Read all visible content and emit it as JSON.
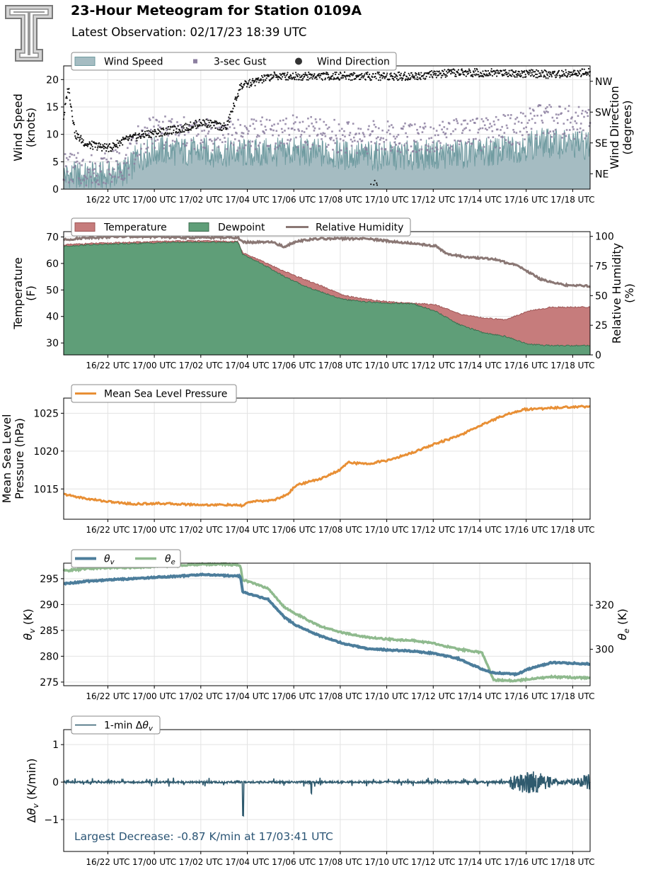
{
  "header": {
    "title": "23-Hour Meteogram for Station 0109A",
    "subtitle": "Latest Observation: 02/17/23 18:39 UTC",
    "logo": "texas-tech-double-t-logo"
  },
  "colors": {
    "wind_fill": "#a5bcc2",
    "wind_line": "#6f9ba0",
    "gust": "#8c7fa0",
    "direction": "#111111",
    "temperature": "#c67c7c",
    "dewpoint": "#5f9e78",
    "rh": "#8a7774",
    "mslp": "#e88f35",
    "theta_v": "#4c7d9b",
    "theta_e": "#8fba8e",
    "dtheta": "#2f5a6e",
    "annotation": "#2b5575",
    "grid": "#e3e3e3"
  },
  "chart_data": [
    {
      "id": "wind",
      "type": "area",
      "ylabel": "Wind Speed\n(knots)",
      "ylabel_right": "Wind Direction\n(degrees)",
      "ylim": [
        0,
        22.5
      ],
      "yticks": [
        "0",
        "5",
        "10",
        "15",
        "20"
      ],
      "ytick_values": [
        0,
        5,
        10,
        15,
        20
      ],
      "ylim_right": [
        0,
        360
      ],
      "yticks_right": [
        "NE",
        "SE",
        "SW",
        "NW"
      ],
      "ytick_right_values": [
        45,
        135,
        225,
        315
      ],
      "xticks": [
        "16/22 UTC",
        "17/00 UTC",
        "17/02 UTC",
        "17/04 UTC",
        "17/06 UTC",
        "17/08 UTC",
        "17/10 UTC",
        "17/12 UTC",
        "17/14 UTC",
        "17/16 UTC",
        "17/18 UTC"
      ],
      "xtick_hours": [
        1.9,
        3.9,
        5.9,
        7.9,
        9.9,
        11.9,
        13.9,
        15.9,
        17.9,
        19.9,
        21.9
      ],
      "xlim_hours": [
        0,
        22.65
      ],
      "legend": [
        "Wind Speed",
        "3-sec Gust",
        "Wind Direction"
      ],
      "series": [
        {
          "name": "Wind Speed",
          "x": [
            0,
            1,
            2,
            2.8,
            3.2,
            4,
            6,
            8,
            10,
            12,
            14,
            16,
            18,
            19.5,
            20.5,
            22.65
          ],
          "values": [
            2.5,
            2.2,
            2.4,
            3.5,
            6,
            7,
            6.8,
            6.5,
            6.8,
            6.2,
            6,
            6.3,
            6.5,
            7.5,
            8.5,
            8
          ]
        },
        {
          "name": "3-sec Gust",
          "x": [
            0,
            1,
            2,
            2.8,
            3.2,
            4,
            6,
            8,
            10,
            12,
            14,
            16,
            18,
            19.5,
            20.5,
            22.65
          ],
          "values": [
            4,
            3.5,
            4,
            5,
            9,
            10.5,
            10,
            10,
            10.5,
            9.5,
            9.5,
            9.8,
            10,
            11,
            12.5,
            12
          ]
        },
        {
          "name": "Wind Direction",
          "x": [
            0,
            0.2,
            0.5,
            1,
            2,
            2.5,
            3.5,
            5,
            6,
            7,
            7.6,
            9,
            11,
            13,
            15,
            17,
            19,
            21,
            22.65
          ],
          "values": [
            210,
            300,
            160,
            130,
            120,
            140,
            160,
            175,
            195,
            180,
            300,
            330,
            330,
            330,
            330,
            340,
            340,
            335,
            340
          ]
        }
      ]
    },
    {
      "id": "temp",
      "type": "area",
      "ylabel": "Temperature\n(F)",
      "ylabel_right": "Relative Humidity\n(%)",
      "ylim": [
        25.5,
        72
      ],
      "yticks": [
        "30",
        "40",
        "50",
        "60",
        "70"
      ],
      "ytick_values": [
        30,
        40,
        50,
        60,
        70
      ],
      "ylim_right": [
        0,
        104
      ],
      "yticks_right": [
        "0",
        "25",
        "50",
        "75",
        "100"
      ],
      "ytick_right_values": [
        0,
        25,
        50,
        75,
        100
      ],
      "legend": [
        "Temperature",
        "Dewpoint",
        "Relative Humidity"
      ],
      "series": [
        {
          "name": "Temperature",
          "x": [
            0,
            1,
            3,
            5,
            6,
            7.5,
            7.7,
            8.5,
            9.5,
            10.5,
            11.5,
            12,
            13,
            14,
            15,
            16,
            17,
            18,
            19,
            20,
            21,
            22.65
          ],
          "values": [
            67,
            67.5,
            68,
            68.5,
            68.5,
            68.3,
            64,
            61,
            57,
            53.5,
            50,
            48,
            46.5,
            45.5,
            45,
            44.5,
            41,
            39.5,
            38.8,
            42,
            43.5,
            43.5
          ]
        },
        {
          "name": "Dewpoint",
          "x": [
            0,
            1,
            3,
            5,
            6,
            7.5,
            7.7,
            8.5,
            9.5,
            10.5,
            11.5,
            12,
            13,
            14,
            15,
            16,
            17,
            18,
            19,
            20,
            21,
            22.65
          ],
          "values": [
            66.5,
            67,
            67.5,
            68,
            68,
            68,
            63.5,
            60,
            55,
            51,
            48,
            46.5,
            45.5,
            45,
            44.8,
            42,
            37,
            34,
            32.5,
            29.5,
            29,
            29
          ]
        },
        {
          "name": "Relative Humidity",
          "x": [
            0,
            1,
            3,
            5,
            6,
            7.5,
            7.7,
            9,
            9.5,
            10,
            11,
            13,
            14,
            15,
            16,
            16.5,
            17.5,
            18.5,
            19,
            19.5,
            20.5,
            21.5,
            22.65
          ],
          "values": [
            97,
            99,
            100,
            99,
            99,
            99,
            95,
            95,
            91,
            96,
            98,
            98,
            96,
            94,
            92,
            85,
            82,
            81,
            78,
            76,
            64,
            59,
            58
          ]
        }
      ]
    },
    {
      "id": "mslp",
      "type": "line",
      "ylabel": "Mean Sea Level\nPressure (hPa)",
      "ylim": [
        1011,
        1027
      ],
      "yticks": [
        "1015",
        "1020",
        "1025"
      ],
      "ytick_values": [
        1015,
        1020,
        1025
      ],
      "legend": [
        "Mean Sea Level Pressure"
      ],
      "series": [
        {
          "name": "Mean Sea Level Pressure",
          "x": [
            0,
            1,
            2,
            3,
            4,
            5,
            6,
            7,
            7.7,
            8,
            9,
            9.6,
            10,
            11,
            11.9,
            12.2,
            13,
            14,
            15,
            16,
            17,
            18,
            19,
            19.8,
            20.5,
            21.5,
            22.65
          ],
          "values": [
            1014.3,
            1013.7,
            1013.3,
            1013,
            1013.1,
            1013,
            1012.9,
            1012.9,
            1012.8,
            1013.3,
            1013.5,
            1014.2,
            1015.5,
            1016.3,
            1017.5,
            1018.5,
            1018.3,
            1018.8,
            1019.8,
            1021,
            1022,
            1023.5,
            1024.8,
            1025.5,
            1025.6,
            1025.8,
            1025.9
          ]
        }
      ]
    },
    {
      "id": "theta",
      "type": "line",
      "ylabel": "θv (K)",
      "ylabel_right": "θe (K)",
      "ylim": [
        274.3,
        298
      ],
      "yticks": [
        "275",
        "280",
        "285",
        "290",
        "295"
      ],
      "ytick_values": [
        275,
        280,
        285,
        290,
        295
      ],
      "ylim_right": [
        283.5,
        339
      ],
      "yticks_right": [
        "300",
        "320"
      ],
      "ytick_right_values": [
        300,
        320
      ],
      "legend": [
        "θv",
        "θe"
      ],
      "series": [
        {
          "name": "θv",
          "x": [
            0,
            1,
            2,
            3,
            4,
            5,
            6,
            7,
            7.6,
            7.7,
            8,
            8.8,
            9.5,
            10,
            11,
            12,
            13,
            14,
            15,
            16,
            17,
            18,
            18.5,
            19.5,
            20,
            21,
            22.65
          ],
          "values": [
            294,
            294.5,
            294.8,
            295,
            295.3,
            295.5,
            295.8,
            295.6,
            295.5,
            292.5,
            292,
            291,
            287.5,
            286,
            284,
            282.5,
            281.5,
            281.2,
            281,
            280.5,
            279.5,
            277.5,
            276.8,
            276.5,
            277.5,
            278.8,
            278.5
          ]
        },
        {
          "name": "θe",
          "x": [
            0,
            1,
            2,
            3,
            4,
            5,
            6,
            7,
            7.6,
            7.7,
            8,
            8.8,
            9.5,
            10,
            11,
            12,
            13,
            14,
            15,
            16,
            17,
            18,
            18.5,
            19.5,
            20,
            21,
            22.65
          ],
          "values": [
            335.5,
            336.5,
            337,
            337,
            337.5,
            338,
            338.5,
            338.5,
            338,
            331.5,
            330.5,
            327.5,
            319,
            316,
            310.5,
            307.5,
            305.5,
            304.5,
            304,
            302.5,
            300,
            298.5,
            286,
            285.8,
            286.5,
            287.5,
            287
          ]
        }
      ]
    },
    {
      "id": "dtheta",
      "type": "line",
      "ylabel": "Δθv (K/min)",
      "ylim": [
        -1.85,
        1.4
      ],
      "yticks": [
        "−1",
        "0",
        "1"
      ],
      "ytick_values": [
        -1,
        0,
        1
      ],
      "legend": [
        "1-min Δθv"
      ],
      "annotation": "Largest Decrease: -0.87 K/min at 17/03:41 UTC",
      "series": [
        {
          "name": "1-min Δθv",
          "x": [
            0,
            1,
            2,
            3,
            4,
            5,
            6,
            7,
            7.6,
            7.7,
            7.8,
            8,
            9,
            10,
            10.6,
            10.7,
            11,
            12,
            13,
            14,
            15,
            16,
            17,
            18,
            19,
            19.5,
            20,
            20.5,
            21,
            21.5,
            22.65
          ],
          "values": [
            0,
            0.05,
            -0.03,
            0.05,
            0,
            0.04,
            -0.05,
            0.03,
            0,
            -0.87,
            -0.1,
            0,
            0.03,
            -0.03,
            0,
            -0.35,
            0,
            0.03,
            -0.03,
            0.02,
            -0.02,
            0.03,
            0,
            -0.05,
            0,
            0.3,
            -0.35,
            0.35,
            -0.3,
            0.25,
            0
          ]
        }
      ]
    }
  ]
}
